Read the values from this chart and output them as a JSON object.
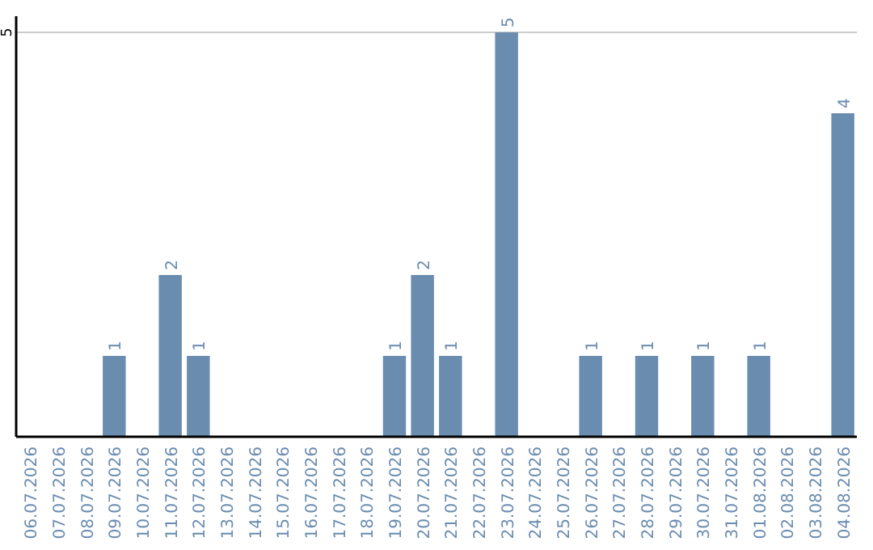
{
  "chart_data": {
    "type": "bar",
    "categories": [
      "06.07.2026",
      "07.07.2026",
      "08.07.2026",
      "09.07.2026",
      "10.07.2026",
      "11.07.2026",
      "12.07.2026",
      "13.07.2026",
      "14.07.2026",
      "15.07.2026",
      "16.07.2026",
      "17.07.2026",
      "18.07.2026",
      "19.07.2026",
      "20.07.2026",
      "21.07.2026",
      "22.07.2026",
      "23.07.2026",
      "24.07.2026",
      "25.07.2026",
      "26.07.2026",
      "27.07.2026",
      "28.07.2026",
      "29.07.2026",
      "30.07.2026",
      "31.07.2026",
      "01.08.2026",
      "02.08.2026",
      "03.08.2026",
      "04.08.2026"
    ],
    "values": [
      0,
      0,
      0,
      1,
      0,
      2,
      1,
      0,
      0,
      0,
      0,
      0,
      0,
      1,
      2,
      1,
      0,
      5,
      0,
      0,
      1,
      0,
      1,
      0,
      1,
      0,
      1,
      0,
      0,
      4
    ],
    "value_labels": [
      null,
      null,
      null,
      "1",
      null,
      "2",
      "1",
      null,
      null,
      null,
      null,
      null,
      null,
      "1",
      "2",
      "1",
      null,
      "5",
      null,
      null,
      "1",
      null,
      "1",
      null,
      "1",
      null,
      "1",
      null,
      null,
      "4"
    ],
    "color": "#6a8caf",
    "ylim": [
      0,
      5
    ],
    "yticks": [
      5
    ],
    "ref_lines": [
      {
        "axis": "y",
        "value": 5,
        "color": "#cccccc"
      }
    ]
  }
}
